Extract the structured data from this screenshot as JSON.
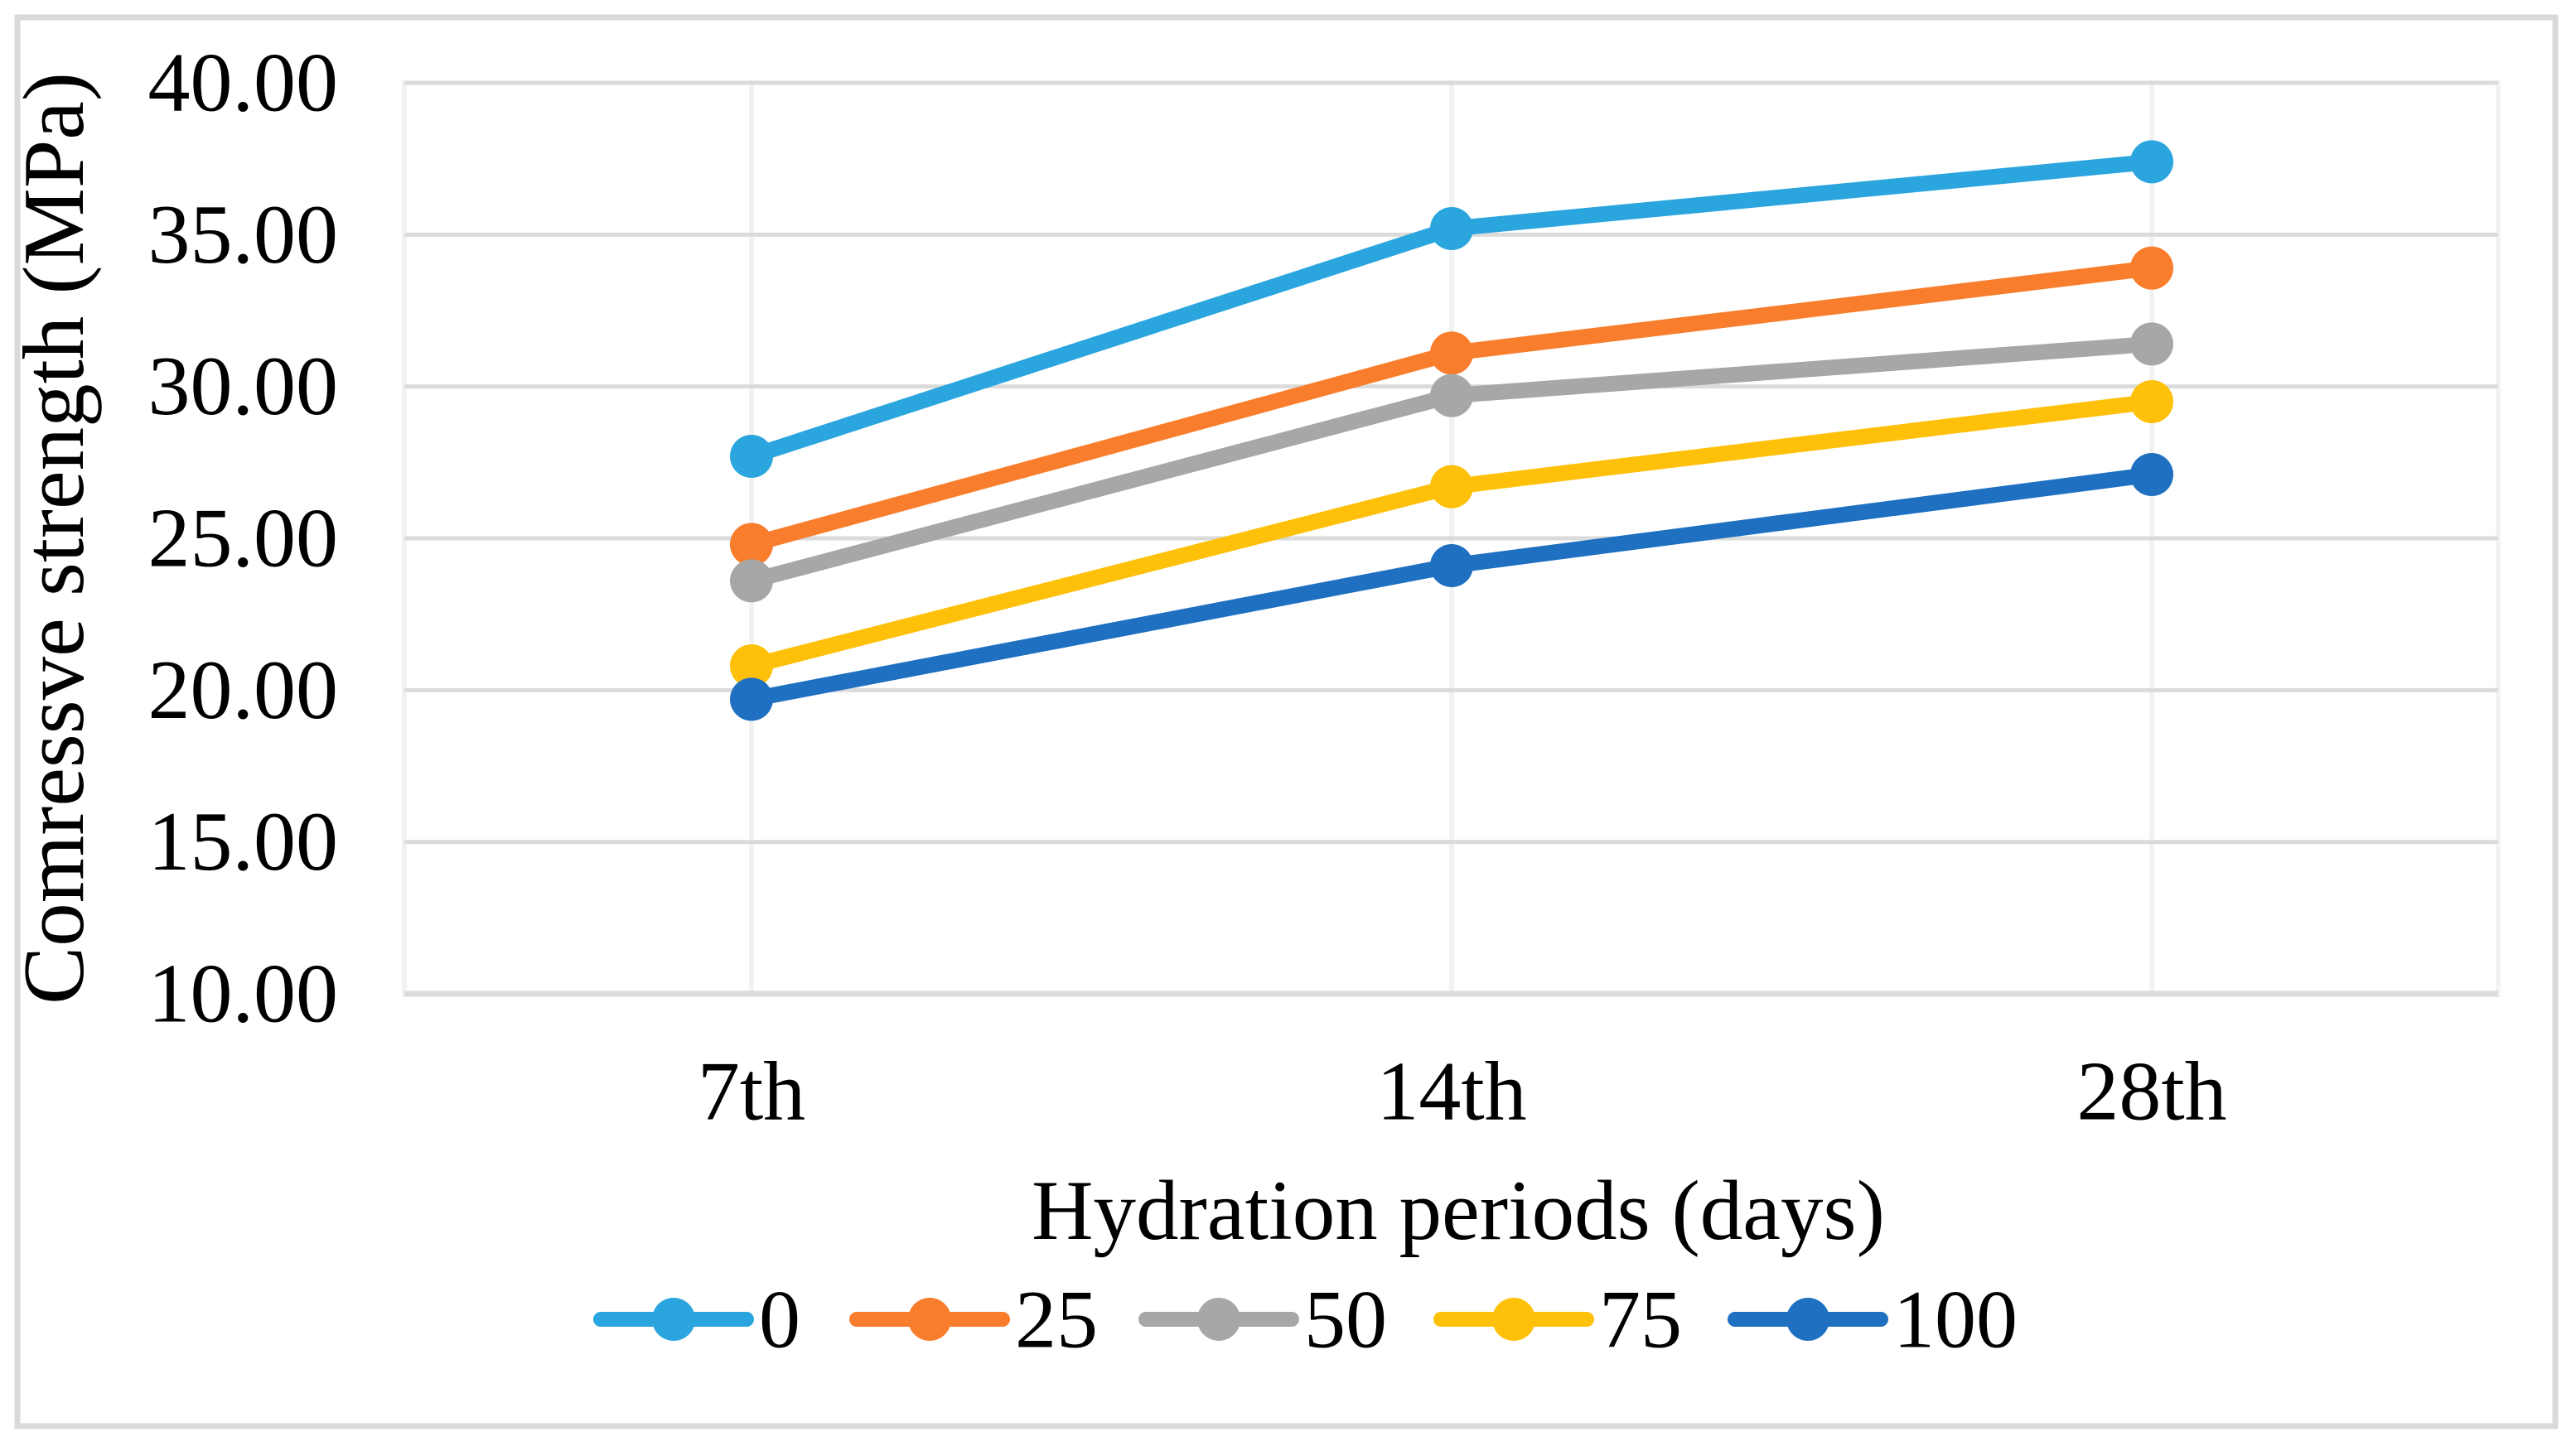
{
  "figure": {
    "background": "#FFFFFF",
    "border_color": "#D9D9D9"
  },
  "chart_data": {
    "type": "line",
    "title": "",
    "xlabel": "Hydration periods (days)",
    "ylabel": "Comressve strength (MPa)",
    "categories": [
      "7th",
      "14th",
      "28th"
    ],
    "series": [
      {
        "name": "0",
        "color": "#2AA5DE",
        "values": [
          27.7,
          35.2,
          37.4
        ]
      },
      {
        "name": "25",
        "color": "#F87D2C",
        "values": [
          24.8,
          31.1,
          33.9
        ]
      },
      {
        "name": "50",
        "color": "#A7A7A7",
        "values": [
          23.6,
          29.7,
          31.4
        ]
      },
      {
        "name": "75",
        "color": "#FEC008",
        "values": [
          20.8,
          26.7,
          29.5
        ]
      },
      {
        "name": "100",
        "color": "#1F70C1",
        "values": [
          19.7,
          24.1,
          27.1
        ]
      }
    ],
    "y_axis": {
      "min": 10,
      "max": 40,
      "step": 5,
      "tick_labels": [
        "40.00",
        "35.00",
        "30.00",
        "25.00",
        "20.00",
        "15.00",
        "10.00"
      ]
    },
    "legend": {
      "position": "bottom",
      "labels": [
        "0",
        "25",
        "50",
        "75",
        "100"
      ]
    },
    "grid": {
      "horizontal": true,
      "vertical": true,
      "h_color": "#DBDBDB",
      "v_color": "#F2F2F2"
    },
    "marker": "circle",
    "line_style": "solid"
  }
}
